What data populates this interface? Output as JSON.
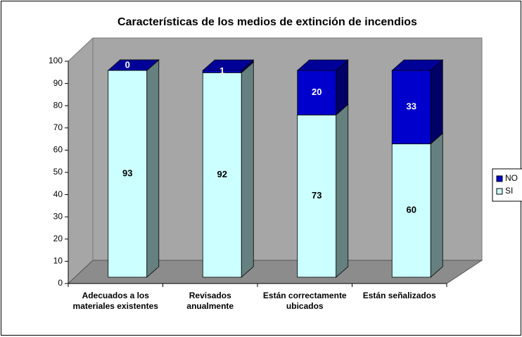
{
  "chart_data": {
    "type": "bar3d_stacked",
    "title": "Características de los medios de extinción de incendios",
    "categories": [
      "Adecuados a los materiales existentes",
      "Revisados anualmente",
      "Están correctamente ubicados",
      "Están señalizados"
    ],
    "series": [
      {
        "name": "SI",
        "color": "#ccffff",
        "values": [
          93,
          92,
          73,
          60
        ]
      },
      {
        "name": "NO",
        "color": "#0000cc",
        "values": [
          0,
          1,
          20,
          33
        ]
      }
    ],
    "ylim": [
      0,
      100
    ],
    "yticks": [
      0,
      10,
      20,
      30,
      40,
      50,
      60,
      70,
      80,
      90,
      100
    ]
  }
}
